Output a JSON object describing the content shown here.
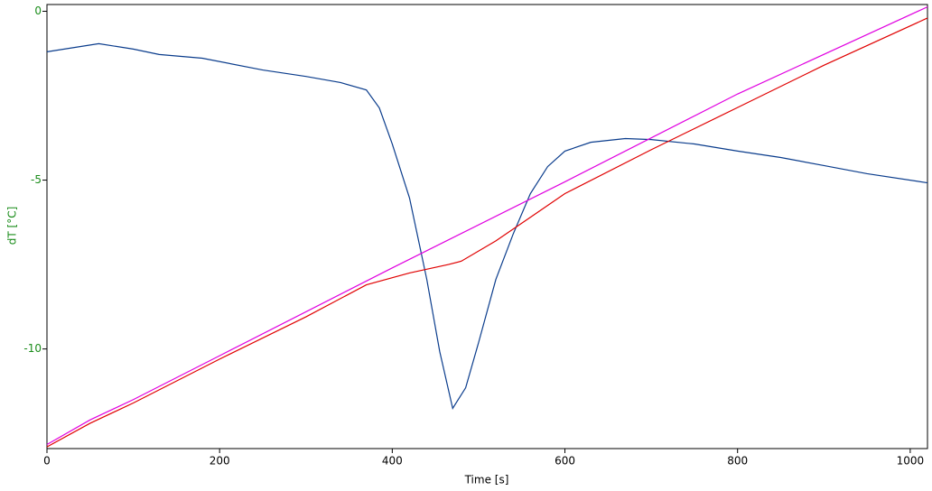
{
  "chart_data": {
    "type": "line",
    "x_label": "Time [s]",
    "y_label": "dT [°C]",
    "xlim": [
      0,
      1020
    ],
    "ylim": [
      -12.95,
      0.2
    ],
    "xticks": [
      0,
      200,
      400,
      600,
      800,
      1000
    ],
    "yticks": [
      0,
      -5,
      -10
    ],
    "y_axis_color": "#1a8c1a",
    "series": [
      {
        "color": "#0a3c8c",
        "x": [
          0,
          60,
          100,
          130,
          180,
          250,
          300,
          340,
          370,
          385,
          400,
          420,
          440,
          455,
          470,
          485,
          500,
          520,
          540,
          560,
          580,
          600,
          630,
          670,
          700,
          750,
          800,
          850,
          900,
          950,
          1020
        ],
        "values": [
          -1.2,
          -0.96,
          -1.12,
          -1.28,
          -1.39,
          -1.74,
          -1.93,
          -2.11,
          -2.33,
          -2.86,
          -3.93,
          -5.53,
          -7.94,
          -10.08,
          -11.76,
          -11.15,
          -9.81,
          -7.94,
          -6.6,
          -5.4,
          -4.6,
          -4.14,
          -3.88,
          -3.77,
          -3.8,
          -3.93,
          -4.14,
          -4.33,
          -4.57,
          -4.81,
          -5.08
        ]
      },
      {
        "color": "#e000e0",
        "x": [
          0,
          50,
          100,
          200,
          400,
          600,
          800,
          1020
        ],
        "values": [
          -12.83,
          -12.1,
          -11.5,
          -10.2,
          -7.6,
          -5.05,
          -2.45,
          0.13
        ]
      },
      {
        "color": "#e00000",
        "x": [
          0,
          50,
          100,
          200,
          300,
          370,
          420,
          465,
          480,
          520,
          560,
          600,
          700,
          800,
          900,
          1020
        ],
        "values": [
          -12.9,
          -12.2,
          -11.6,
          -10.3,
          -9.05,
          -8.1,
          -7.75,
          -7.5,
          -7.4,
          -6.8,
          -6.1,
          -5.4,
          -4.1,
          -2.85,
          -1.6,
          -0.2
        ]
      }
    ]
  }
}
